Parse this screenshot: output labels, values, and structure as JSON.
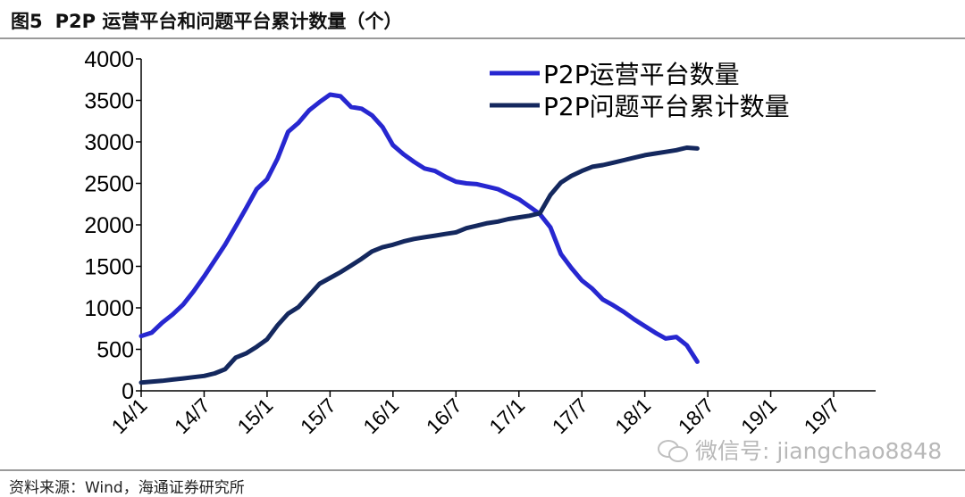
{
  "header": {
    "figure_label": "图5",
    "title": "P2P 运营平台和问题平台累计数量（个）"
  },
  "footer": {
    "source": "资料来源：Wind，海通证券研究所"
  },
  "watermark": {
    "text": "微信号: jiangchao8848",
    "icon": "wechat-icon"
  },
  "colors": {
    "operating": "#2727d0",
    "problem": "#14285e",
    "axis": "#000000"
  },
  "chart_data": {
    "type": "line",
    "ylim": [
      0,
      4000
    ],
    "yticks": [
      0,
      500,
      1000,
      1500,
      2000,
      2500,
      3000,
      3500,
      4000
    ],
    "xticks": [
      "14/1",
      "14/7",
      "15/1",
      "15/7",
      "16/1",
      "16/7",
      "17/1",
      "17/7",
      "18/1",
      "18/7",
      "19/1",
      "19/7"
    ],
    "x_range_months": [
      0,
      70
    ],
    "legend_position": "top-right",
    "series": [
      {
        "name": "P2P运营平台数量",
        "key": "operating",
        "points": [
          [
            0,
            660
          ],
          [
            1,
            700
          ],
          [
            2,
            820
          ],
          [
            3,
            920
          ],
          [
            4,
            1040
          ],
          [
            5,
            1200
          ],
          [
            6,
            1380
          ],
          [
            7,
            1570
          ],
          [
            8,
            1760
          ],
          [
            9,
            1980
          ],
          [
            10,
            2200
          ],
          [
            11,
            2430
          ],
          [
            12,
            2550
          ],
          [
            13,
            2800
          ],
          [
            14,
            3120
          ],
          [
            15,
            3230
          ],
          [
            16,
            3380
          ],
          [
            17,
            3480
          ],
          [
            18,
            3570
          ],
          [
            19,
            3550
          ],
          [
            20,
            3420
          ],
          [
            21,
            3400
          ],
          [
            22,
            3320
          ],
          [
            23,
            3180
          ],
          [
            24,
            2960
          ],
          [
            25,
            2850
          ],
          [
            26,
            2760
          ],
          [
            27,
            2680
          ],
          [
            28,
            2650
          ],
          [
            29,
            2580
          ],
          [
            30,
            2520
          ],
          [
            31,
            2500
          ],
          [
            32,
            2490
          ],
          [
            33,
            2460
          ],
          [
            34,
            2430
          ],
          [
            35,
            2370
          ],
          [
            36,
            2310
          ],
          [
            37,
            2220
          ],
          [
            38,
            2130
          ],
          [
            39,
            1970
          ],
          [
            40,
            1650
          ],
          [
            41,
            1480
          ],
          [
            42,
            1330
          ],
          [
            43,
            1230
          ],
          [
            44,
            1100
          ],
          [
            45,
            1030
          ],
          [
            46,
            950
          ],
          [
            47,
            860
          ],
          [
            48,
            780
          ],
          [
            49,
            700
          ],
          [
            50,
            630
          ],
          [
            51,
            650
          ],
          [
            52,
            550
          ],
          [
            53,
            350
          ]
        ]
      },
      {
        "name": "P2P问题平台累计数量",
        "key": "problem",
        "points": [
          [
            0,
            100
          ],
          [
            1,
            110
          ],
          [
            2,
            120
          ],
          [
            3,
            135
          ],
          [
            4,
            150
          ],
          [
            5,
            165
          ],
          [
            6,
            180
          ],
          [
            7,
            210
          ],
          [
            8,
            260
          ],
          [
            9,
            400
          ],
          [
            10,
            450
          ],
          [
            11,
            530
          ],
          [
            12,
            620
          ],
          [
            13,
            790
          ],
          [
            14,
            930
          ],
          [
            15,
            1010
          ],
          [
            16,
            1150
          ],
          [
            17,
            1290
          ],
          [
            18,
            1360
          ],
          [
            19,
            1430
          ],
          [
            20,
            1510
          ],
          [
            21,
            1590
          ],
          [
            22,
            1680
          ],
          [
            23,
            1730
          ],
          [
            24,
            1760
          ],
          [
            25,
            1800
          ],
          [
            26,
            1830
          ],
          [
            27,
            1850
          ],
          [
            28,
            1870
          ],
          [
            29,
            1890
          ],
          [
            30,
            1910
          ],
          [
            31,
            1960
          ],
          [
            32,
            1990
          ],
          [
            33,
            2020
          ],
          [
            34,
            2040
          ],
          [
            35,
            2070
          ],
          [
            36,
            2090
          ],
          [
            37,
            2110
          ],
          [
            38,
            2140
          ],
          [
            39,
            2360
          ],
          [
            40,
            2510
          ],
          [
            41,
            2590
          ],
          [
            42,
            2650
          ],
          [
            43,
            2700
          ],
          [
            44,
            2720
          ],
          [
            45,
            2750
          ],
          [
            46,
            2780
          ],
          [
            47,
            2810
          ],
          [
            48,
            2840
          ],
          [
            49,
            2860
          ],
          [
            50,
            2880
          ],
          [
            51,
            2900
          ],
          [
            52,
            2930
          ],
          [
            53,
            2920
          ]
        ]
      }
    ]
  }
}
